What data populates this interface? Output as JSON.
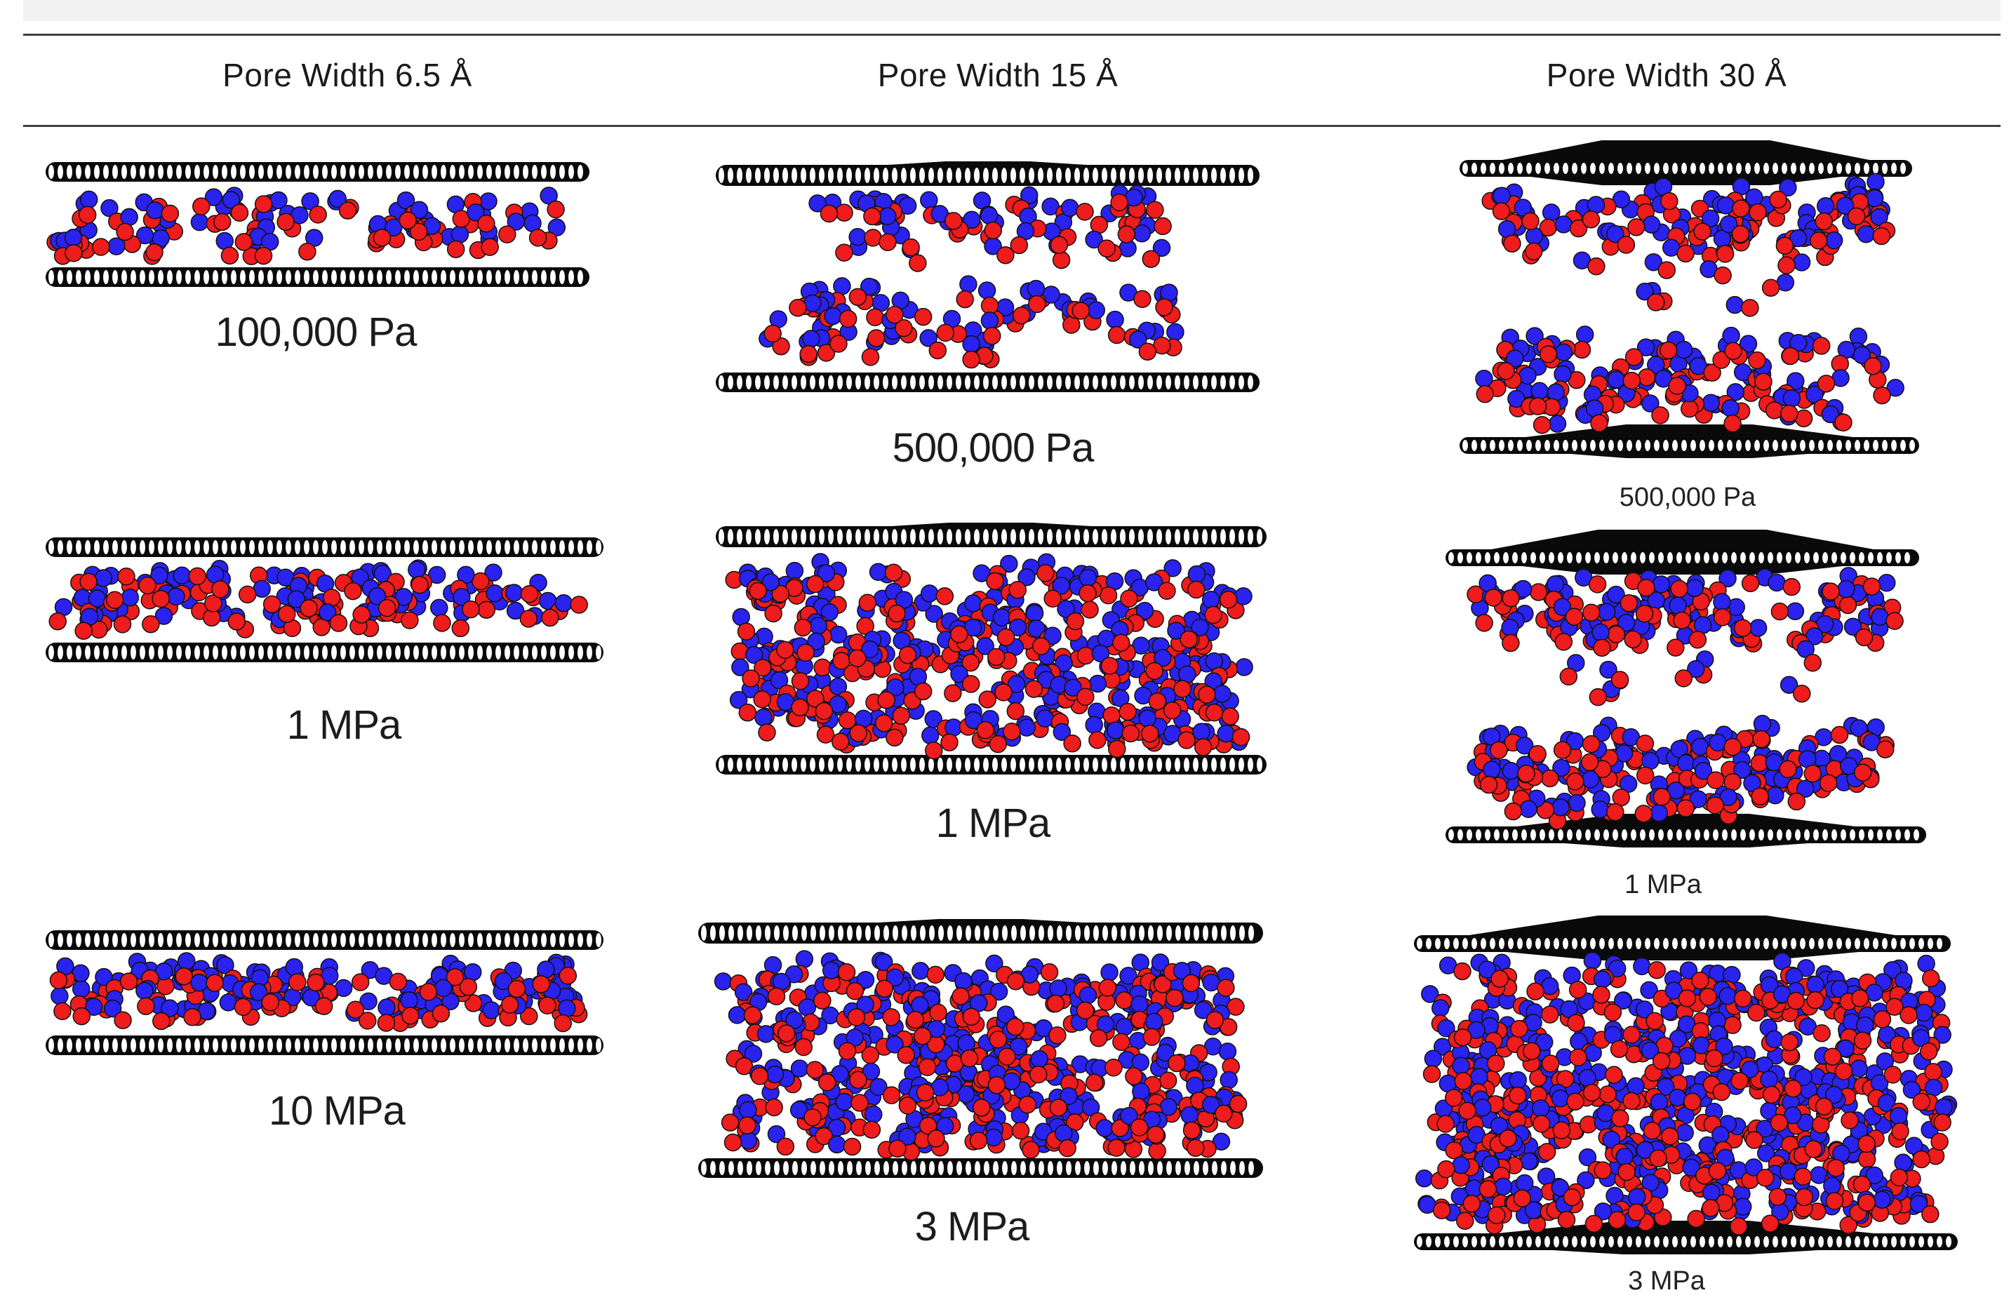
{
  "header": {
    "col1": "Pore Width 6.5 Å",
    "col2": "Pore Width 15 Å",
    "col3": "Pore Width 30 Å"
  },
  "panels": [
    {
      "id": "a1",
      "label": "100,000 Pa",
      "density": 0.25
    },
    {
      "id": "a2",
      "label": "1 MPa",
      "density": 0.55
    },
    {
      "id": "a3",
      "label": "10 MPa",
      "density": 0.8
    },
    {
      "id": "b1",
      "label": "500,000 Pa",
      "density": 0.25
    },
    {
      "id": "b2",
      "label": "1 MPa",
      "density": 0.7
    },
    {
      "id": "b3",
      "label": "3 MPa",
      "density": 0.95
    },
    {
      "id": "c1",
      "label": "500,000 Pa",
      "density": 0.12
    },
    {
      "id": "c2",
      "label": "1 MPa",
      "density": 0.2
    },
    {
      "id": "c3",
      "label": "3 MPa",
      "density": 1.0
    }
  ],
  "colors": {
    "wall": "#0a0a0a",
    "red": "#ee1c1c",
    "blue": "#2a22ee"
  }
}
